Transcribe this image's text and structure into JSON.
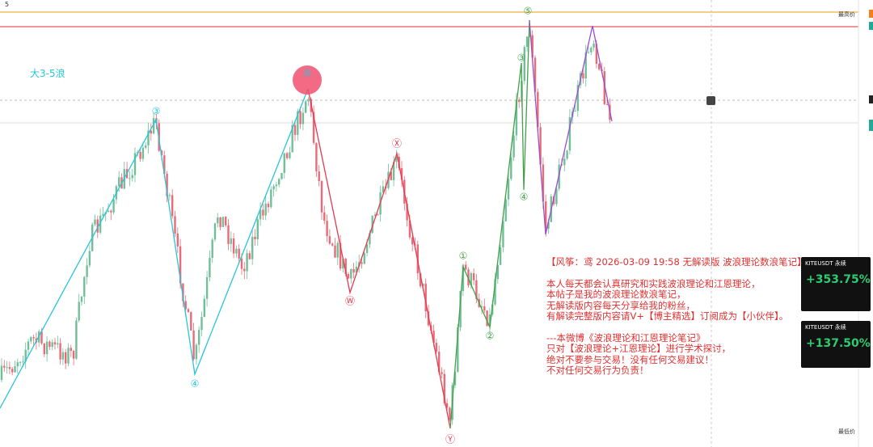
{
  "toolbar": {
    "interval": "5"
  },
  "chart_title": "大3-5浪",
  "price_labels": {
    "high": "最高价",
    "low": "最低价"
  },
  "wave_labels": [
    "③",
    "④",
    "⑤",
    "Ⓦ",
    "Ⓧ",
    "Ⓨ",
    "①",
    "②",
    "③",
    "④",
    "⑤"
  ],
  "note": {
    "lines": [
      "【风筝：鸢 2026-03-09 19:58 无解读版  波浪理论数浪笔记】",
      "本人每天都会认真研究和实践波浪理论和江恩理论，",
      "本帖子是我的波浪理论数浪笔记，",
      "无解读版内容每天分享给我的粉丝，",
      "有解读完整版内容请V+【博主精选】订阅成为【小伙伴】。",
      "---本微博《波浪理论和江恩理论笔记》",
      "只对【波浪理论+江恩理论】进行学术探讨，",
      "绝对不要参与交易！没有任何交易建议！",
      "不对任何交易行为负责！"
    ]
  },
  "cards": [
    {
      "symbol": "KITEUSDT 永续",
      "gain": "+353.75%"
    },
    {
      "symbol": "KITEUSDT 永续",
      "gain": "+137.50%"
    }
  ]
}
